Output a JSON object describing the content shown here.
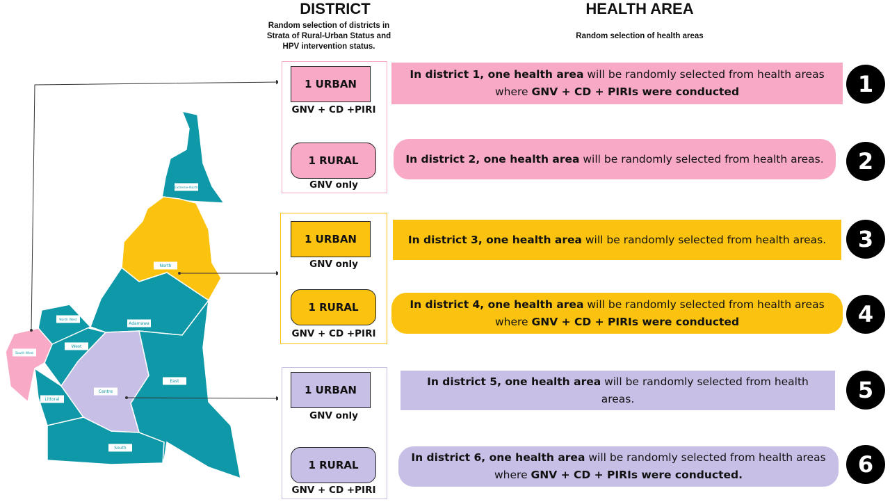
{
  "header": {
    "district_title": "DISTRICT",
    "district_subtitle": "Random selection of districts in Strata of  Rural-Urban Status and HPV intervention status.",
    "health_area_title": "HEALTH AREA",
    "health_area_subtitle": "Random selection of health areas"
  },
  "map": {
    "regions": [
      "Extreme-North",
      "North",
      "Adamawa",
      "North West",
      "West",
      "South West",
      "Centre",
      "Littoral",
      "East",
      "South"
    ]
  },
  "rows": [
    {
      "district": "1 URBAN",
      "intervention": "GNV + CD +PIRI",
      "number": "1",
      "health_area": [
        "In district 1, one health area",
        " will be randomly selected from health areas where ",
        "GNV + CD + PIRIs were conducted"
      ]
    },
    {
      "district": "1 RURAL",
      "intervention": "GNV only",
      "number": "2",
      "health_area": [
        "In district 2, one health area",
        " will be randomly selected from health areas."
      ]
    },
    {
      "district": "1 URBAN",
      "intervention": "GNV only",
      "number": "3",
      "health_area": [
        "In district 3, one health area",
        " will be randomly selected from health areas."
      ]
    },
    {
      "district": "1 RURAL",
      "intervention": "GNV + CD +PIRI",
      "number": "4",
      "health_area": [
        "In district 4, one health area",
        " will be randomly selected from health areas where ",
        "GNV + CD + PIRIs were conducted"
      ]
    },
    {
      "district": "1 URBAN",
      "intervention": "GNV only",
      "number": "5",
      "health_area": [
        "In district 5, one health area",
        " will be randomly selected from health areas."
      ]
    },
    {
      "district": "1 RURAL",
      "intervention": "GNV + CD +PIRI",
      "number": "6",
      "health_area": [
        "In district 6, one health area",
        " will be randomly selected from health areas where ",
        "GNV + CD + PIRIs were conducted."
      ]
    }
  ]
}
